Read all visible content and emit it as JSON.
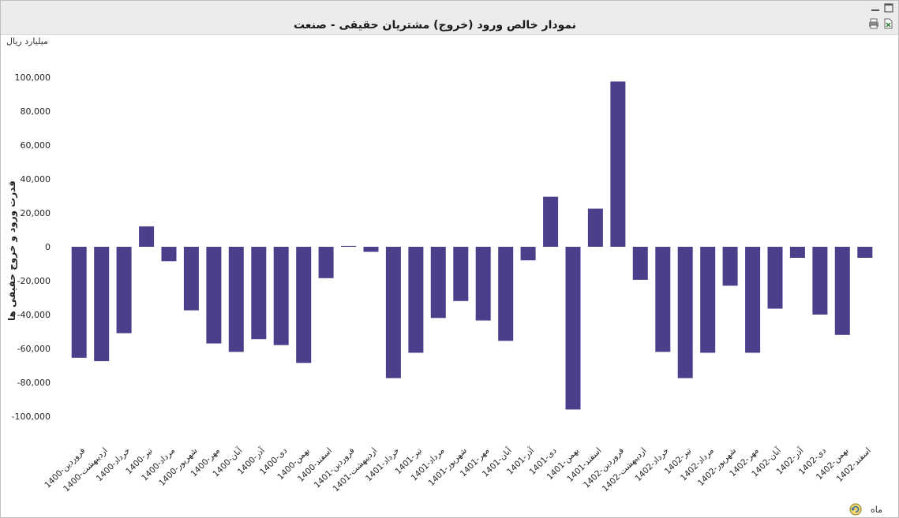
{
  "chart_data": {
    "type": "bar",
    "title": "نمودار خالص ورود (خروج) مشتریان حقیقی - صنعت",
    "unit": "میلیارد ریال",
    "ylabel": "قدرت ورود و خروج حقیقی ها",
    "xlabel": "",
    "ylim": [
      -115000,
      115000
    ],
    "yticks": [
      -100000,
      -80000,
      -60000,
      -40000,
      -20000,
      0,
      20000,
      40000,
      60000,
      80000,
      100000
    ],
    "ytick_labels": [
      "-100,000",
      "-80,000",
      "-60,000",
      "-40,000",
      "-20,000",
      "0",
      "20,000",
      "40,000",
      "60,000",
      "80,000",
      "100,000"
    ],
    "categories": [
      "1400-فروردین",
      "1400-اردیبهشت",
      "1400-خرداد",
      "1400-تیر",
      "1400-مرداد",
      "1400-شهریور",
      "1400-مهر",
      "1400-آبان",
      "1400-آذر",
      "1400-دی",
      "1400-بهمن",
      "1400-اسفند",
      "1401-فروردین",
      "1401-اردیبهشت",
      "1401-خرداد",
      "1401-تیر",
      "1401-مرداد",
      "1401-شهریور",
      "1401-مهر",
      "1401-آبان",
      "1401-آذر",
      "1401-دی",
      "1401-بهمن",
      "1401-اسفند",
      "1402-فروردین",
      "1402-اردیبهشت",
      "1402-خرداد",
      "1402-تیر",
      "1402-مرداد",
      "1402-شهریور",
      "1402-مهر",
      "1402-آبان",
      "1402-آذر",
      "1402-دی",
      "1402-بهمن",
      "1402-اسفند"
    ],
    "values": [
      -65500,
      -67500,
      -51000,
      12000,
      -8500,
      -37500,
      -57000,
      -62000,
      -54500,
      -58000,
      -68500,
      -18500,
      500,
      -3000,
      -77500,
      -62500,
      -42000,
      -32000,
      -43500,
      -55500,
      -8000,
      29500,
      -96000,
      22500,
      97500,
      -19500,
      -62000,
      -77500,
      -62500,
      -23000,
      -62500,
      -36500,
      -6500,
      -40000,
      -52000,
      -6500
    ],
    "bar_color": "#4b3f8c",
    "grid": false,
    "legend": "none"
  },
  "footer": {
    "period_label": "ماه",
    "refresh_icon": "refresh-icon"
  },
  "window": {
    "minimize_icon": "minimize-icon",
    "maximize_icon": "maximize-icon",
    "print_icon": "print-icon",
    "export_icon": "export-icon"
  }
}
